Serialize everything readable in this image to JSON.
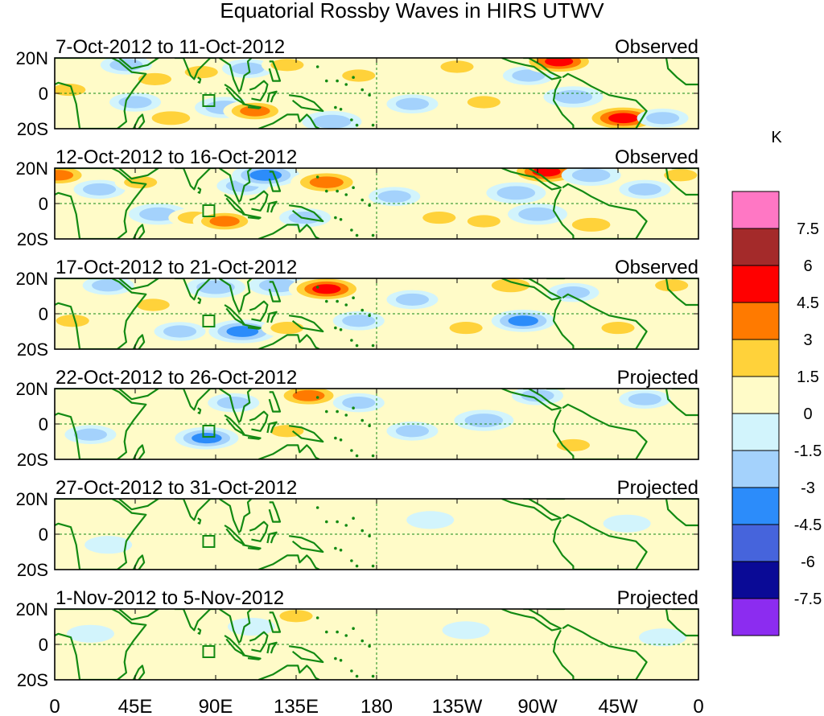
{
  "chart_data": {
    "type": "heatmap",
    "title": "Equatorial Rossby Waves in HIRS UTWV",
    "xlabel": "Longitude",
    "ylabel": "Latitude",
    "x_ticks": [
      "0",
      "45E",
      "90E",
      "135E",
      "180",
      "135W",
      "90W",
      "45W",
      "0"
    ],
    "x_tick_values": [
      0,
      45,
      90,
      135,
      180,
      225,
      270,
      315,
      360
    ],
    "y_ticks": [
      "20N",
      "0",
      "20S"
    ],
    "y_tick_values": [
      20,
      0,
      -20
    ],
    "xlim": [
      0,
      360
    ],
    "ylim": [
      -20,
      20
    ],
    "colorbar": {
      "unit": "K",
      "levels": [
        "7.5",
        "6",
        "4.5",
        "3",
        "1.5",
        "0",
        "-1.5",
        "-3",
        "-4.5",
        "-6",
        "-7.5"
      ],
      "colors": [
        "#ff77c4",
        "#a42a2a",
        "#ff0000",
        "#ff7a00",
        "#ffd23a",
        "#fffbc8",
        "#d2f4fc",
        "#a4d2fc",
        "#2c8cfa",
        "#4664dc",
        "#0a0a96",
        "#8c2cf0"
      ]
    },
    "panels": [
      {
        "date_range": "7-Oct-2012 to 11-Oct-2012",
        "status": "Observed",
        "features": [
          {
            "lon": 8,
            "lat": 2,
            "value": 2
          },
          {
            "lon": 40,
            "lat": 16,
            "value": -2
          },
          {
            "lon": 45,
            "lat": -5,
            "value": -2
          },
          {
            "lon": 56,
            "lat": 8,
            "value": 2
          },
          {
            "lon": 65,
            "lat": -14,
            "value": 3
          },
          {
            "lon": 82,
            "lat": 12,
            "value": 2
          },
          {
            "lon": 95,
            "lat": -8,
            "value": -3
          },
          {
            "lon": 108,
            "lat": 14,
            "value": -2
          },
          {
            "lon": 112,
            "lat": -10,
            "value": 3.5
          },
          {
            "lon": 130,
            "lat": 16,
            "value": 2
          },
          {
            "lon": 155,
            "lat": -16,
            "value": -3
          },
          {
            "lon": 170,
            "lat": 10,
            "value": 2
          },
          {
            "lon": 200,
            "lat": -6,
            "value": -2
          },
          {
            "lon": 225,
            "lat": 15,
            "value": 2
          },
          {
            "lon": 240,
            "lat": -5,
            "value": 2
          },
          {
            "lon": 265,
            "lat": 10,
            "value": -2
          },
          {
            "lon": 282,
            "lat": 18,
            "value": 5
          },
          {
            "lon": 290,
            "lat": -2,
            "value": -3
          },
          {
            "lon": 318,
            "lat": -14,
            "value": 5.5
          },
          {
            "lon": 340,
            "lat": -14,
            "value": -2
          }
        ]
      },
      {
        "date_range": "12-Oct-2012 to 16-Oct-2012",
        "status": "Observed",
        "features": [
          {
            "lon": 2,
            "lat": 16,
            "value": 3.5
          },
          {
            "lon": 25,
            "lat": 8,
            "value": -2
          },
          {
            "lon": 48,
            "lat": 12,
            "value": 2
          },
          {
            "lon": 58,
            "lat": -6,
            "value": -3
          },
          {
            "lon": 78,
            "lat": -8,
            "value": 2
          },
          {
            "lon": 95,
            "lat": -10,
            "value": 3.5
          },
          {
            "lon": 105,
            "lat": 10,
            "value": -2
          },
          {
            "lon": 118,
            "lat": 16,
            "value": -4
          },
          {
            "lon": 152,
            "lat": 12,
            "value": 4.5
          },
          {
            "lon": 140,
            "lat": -8,
            "value": -2
          },
          {
            "lon": 190,
            "lat": 4,
            "value": -2
          },
          {
            "lon": 215,
            "lat": -8,
            "value": 2
          },
          {
            "lon": 240,
            "lat": -10,
            "value": 2
          },
          {
            "lon": 258,
            "lat": 6,
            "value": -3
          },
          {
            "lon": 270,
            "lat": -6,
            "value": -3
          },
          {
            "lon": 275,
            "lat": 18,
            "value": 5
          },
          {
            "lon": 300,
            "lat": 16,
            "value": -3
          },
          {
            "lon": 300,
            "lat": -12,
            "value": 3
          },
          {
            "lon": 330,
            "lat": 8,
            "value": -2
          },
          {
            "lon": 350,
            "lat": 16,
            "value": 2
          }
        ]
      },
      {
        "date_range": "17-Oct-2012 to 21-Oct-2012",
        "status": "Observed",
        "features": [
          {
            "lon": 10,
            "lat": -4,
            "value": 2
          },
          {
            "lon": 30,
            "lat": 16,
            "value": -2
          },
          {
            "lon": 55,
            "lat": 5,
            "value": 2
          },
          {
            "lon": 70,
            "lat": -10,
            "value": -2
          },
          {
            "lon": 90,
            "lat": 15,
            "value": -3
          },
          {
            "lon": 105,
            "lat": -10,
            "value": -4
          },
          {
            "lon": 125,
            "lat": 16,
            "value": -3
          },
          {
            "lon": 152,
            "lat": 14,
            "value": 5
          },
          {
            "lon": 130,
            "lat": -8,
            "value": 2
          },
          {
            "lon": 170,
            "lat": -4,
            "value": -2
          },
          {
            "lon": 200,
            "lat": 8,
            "value": -2
          },
          {
            "lon": 230,
            "lat": -8,
            "value": 2
          },
          {
            "lon": 255,
            "lat": 16,
            "value": 3
          },
          {
            "lon": 262,
            "lat": -4,
            "value": -3.5
          },
          {
            "lon": 290,
            "lat": 12,
            "value": -2
          },
          {
            "lon": 315,
            "lat": -8,
            "value": 2
          },
          {
            "lon": 345,
            "lat": 16,
            "value": 2
          }
        ]
      },
      {
        "date_range": "22-Oct-2012 to 26-Oct-2012",
        "status": "Projected",
        "features": [
          {
            "lon": 20,
            "lat": -6,
            "value": -2
          },
          {
            "lon": 60,
            "lat": 8,
            "value": 1.5
          },
          {
            "lon": 85,
            "lat": -8,
            "value": -3.5
          },
          {
            "lon": 100,
            "lat": 12,
            "value": -2
          },
          {
            "lon": 130,
            "lat": -4,
            "value": 2
          },
          {
            "lon": 142,
            "lat": 16,
            "value": 4
          },
          {
            "lon": 170,
            "lat": 12,
            "value": -2
          },
          {
            "lon": 200,
            "lat": -4,
            "value": -2
          },
          {
            "lon": 240,
            "lat": 2,
            "value": -3
          },
          {
            "lon": 270,
            "lat": 16,
            "value": -2
          },
          {
            "lon": 290,
            "lat": -12,
            "value": 2
          },
          {
            "lon": 330,
            "lat": 14,
            "value": -2
          }
        ]
      },
      {
        "date_range": "27-Oct-2012 to 31-Oct-2012",
        "status": "Projected",
        "features": [
          {
            "lon": 30,
            "lat": -6,
            "value": -1.5
          },
          {
            "lon": 90,
            "lat": 8,
            "value": 1
          },
          {
            "lon": 150,
            "lat": -6,
            "value": 1
          },
          {
            "lon": 210,
            "lat": 8,
            "value": -1.5
          },
          {
            "lon": 260,
            "lat": -8,
            "value": 1
          },
          {
            "lon": 320,
            "lat": 6,
            "value": -1.5
          }
        ]
      },
      {
        "date_range": "1-Nov-2012 to 5-Nov-2012",
        "status": "Projected",
        "features": [
          {
            "lon": 20,
            "lat": 6,
            "value": -1.5
          },
          {
            "lon": 60,
            "lat": -8,
            "value": 1
          },
          {
            "lon": 110,
            "lat": 10,
            "value": -1.5
          },
          {
            "lon": 135,
            "lat": 16,
            "value": 2
          },
          {
            "lon": 170,
            "lat": -4,
            "value": 1
          },
          {
            "lon": 230,
            "lat": 8,
            "value": -1.5
          },
          {
            "lon": 290,
            "lat": -6,
            "value": 1
          },
          {
            "lon": 340,
            "lat": 4,
            "value": -1.5
          }
        ]
      }
    ]
  }
}
